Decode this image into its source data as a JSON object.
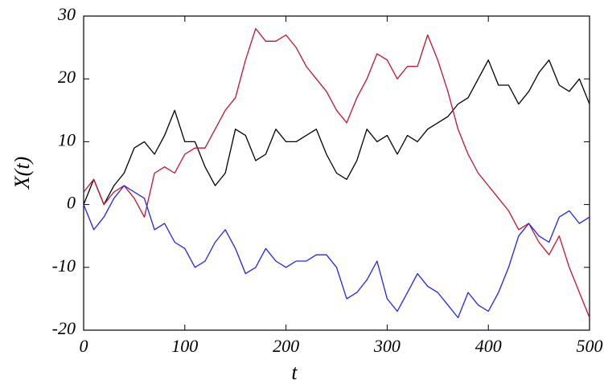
{
  "chart_data": {
    "type": "line",
    "x_label": "t",
    "y_label": "X(t)",
    "x": [
      0,
      10,
      20,
      30,
      40,
      50,
      60,
      70,
      80,
      90,
      100,
      110,
      120,
      130,
      140,
      150,
      160,
      170,
      180,
      190,
      200,
      210,
      220,
      230,
      240,
      250,
      260,
      270,
      280,
      290,
      300,
      310,
      320,
      330,
      340,
      350,
      360,
      370,
      380,
      390,
      400,
      410,
      420,
      430,
      440,
      450,
      460,
      470,
      480,
      490,
      500
    ],
    "series": [
      {
        "color": "#000000",
        "values": [
          0,
          4,
          0,
          3,
          5,
          9,
          10,
          8,
          11,
          15,
          10,
          10,
          6,
          3,
          5,
          12,
          11,
          7,
          8,
          12,
          10,
          10,
          11,
          12,
          8,
          5,
          4,
          7,
          12,
          10,
          11,
          8,
          11,
          10,
          12,
          13,
          14,
          16,
          17,
          20,
          23,
          19,
          19,
          16,
          18,
          21,
          23,
          19,
          18,
          20,
          16
        ]
      },
      {
        "color": "#c8102e",
        "values": [
          2,
          4,
          0,
          2,
          3,
          1,
          -2,
          5,
          6,
          5,
          8,
          9,
          9,
          12,
          15,
          17,
          23,
          28,
          26,
          26,
          27,
          25,
          22,
          20,
          18,
          15,
          13,
          17,
          20,
          24,
          23,
          20,
          22,
          22,
          27,
          23,
          18,
          12,
          8,
          5,
          3,
          1,
          -1,
          -4,
          -3,
          -6,
          -8,
          -5,
          -10,
          -14,
          -18
        ]
      },
      {
        "color": "#2020ff",
        "values": [
          0,
          -4,
          -2,
          1,
          3,
          2,
          1,
          -4,
          -3,
          -6,
          -7,
          -10,
          -9,
          -6,
          -4,
          -7,
          -11,
          -10,
          -7,
          -9,
          -10,
          -9,
          -9,
          -8,
          -8,
          -10,
          -15,
          -14,
          -12,
          -9,
          -15,
          -17,
          -14,
          -11,
          -13,
          -14,
          -16,
          -18,
          -14,
          -16,
          -17,
          -14,
          -10,
          -5,
          -3,
          -5,
          -6,
          -2,
          -1,
          -3,
          -2
        ]
      }
    ],
    "xlim": [
      0,
      500
    ],
    "ylim": [
      -20,
      30
    ],
    "xticks": [
      0,
      100,
      200,
      300,
      400,
      500
    ],
    "yticks": [
      -20,
      -10,
      0,
      10,
      20,
      30
    ],
    "grid": false
  }
}
